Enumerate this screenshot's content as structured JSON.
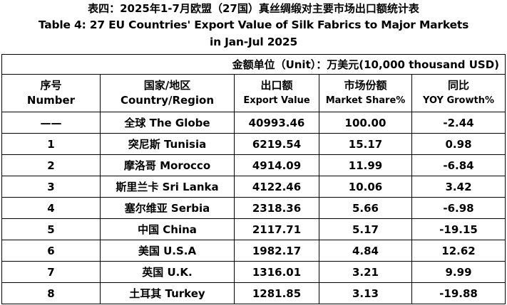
{
  "title": {
    "zh": "表四：2025年1-7月欧盟（27国）真丝绸缎对主要市场出口额统计表",
    "en_line1": "Table 4: 27 EU Countries' Export Value of Silk Fabrics to Major Markets",
    "en_line2": "in Jan-Jul 2025"
  },
  "unit": "金额单位（Unit）：万美元(10,000 thousand USD)",
  "headers": {
    "number": {
      "zh": "序号",
      "en": "Number"
    },
    "country": {
      "zh": "国家/地区",
      "en": "Country/Region"
    },
    "export": {
      "zh": "出口额",
      "en": "Export Value"
    },
    "share": {
      "zh": "市场份额",
      "en": "Market Share%"
    },
    "yoy": {
      "zh": "同比",
      "en": "YOY Growth%"
    }
  },
  "rows": [
    {
      "number": "——",
      "country": "全球 The Globe",
      "export": "40993.46",
      "share": "100.00",
      "yoy": "-2.44"
    },
    {
      "number": "1",
      "country": "突尼斯 Tunisia",
      "export": "6219.54",
      "share": "15.17",
      "yoy": "0.98"
    },
    {
      "number": "2",
      "country": "摩洛哥 Morocco",
      "export": "4914.09",
      "share": "11.99",
      "yoy": "-6.84"
    },
    {
      "number": "3",
      "country": "斯里兰卡 Sri Lanka",
      "export": "4122.46",
      "share": "10.06",
      "yoy": "3.42"
    },
    {
      "number": "4",
      "country": "塞尔维亚 Serbia",
      "export": "2318.36",
      "share": "5.66",
      "yoy": "-6.98"
    },
    {
      "number": "5",
      "country": "中国 China",
      "export": "2117.71",
      "share": "5.17",
      "yoy": "-19.15"
    },
    {
      "number": "6",
      "country": "美国 U.S.A",
      "export": "1982.17",
      "share": "4.84",
      "yoy": "12.62"
    },
    {
      "number": "7",
      "country": "英国 U.K.",
      "export": "1316.01",
      "share": "3.21",
      "yoy": "9.99"
    },
    {
      "number": "8",
      "country": "土耳其 Turkey",
      "export": "1281.85",
      "share": "3.13",
      "yoy": "-19.88"
    }
  ]
}
